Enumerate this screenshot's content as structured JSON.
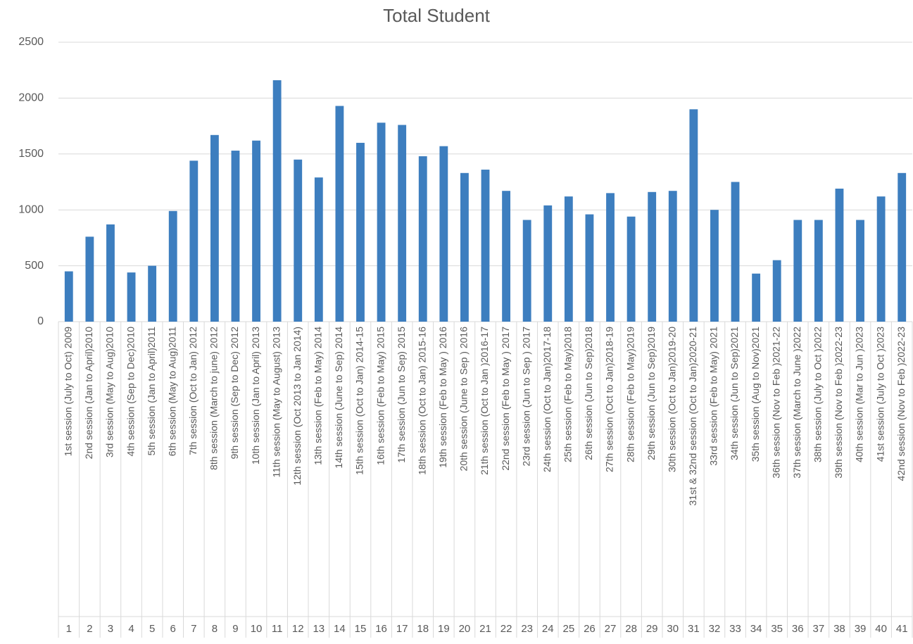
{
  "chart_data": {
    "type": "bar",
    "title": "Total Student",
    "categories": [
      "1st session (July to Oct) 2009",
      "2nd session (Jan to April)2010",
      "3rd session  (May to Aug)2010",
      "4th session (Sep to Dec)2010",
      "5th session (Jan to April)2011",
      "6th session (May to Aug)2011",
      "7th session (Oct to Jan) 2012",
      "8th session (March to june) 2012",
      "9th session (Sep to Dec) 2012",
      "10th session (Jan to April) 2013",
      "11th session (May to August) 2013",
      "12th session (Oct 2013 to Jan 2014)",
      "13th session (Feb to May) 2014",
      "14th session (June to Sep) 2014",
      "15th session (Oct to Jan) 2014-15",
      "16th session (Feb to May) 2015",
      "17th session  (Jun to Sep) 2015",
      "18th session (Oct to Jan) 2015-16",
      "19th session (Feb to May ) 2016",
      "20th session (June to Sep ) 2016",
      "21th session (Oct to Jan )2016-17",
      "22nd session (Feb to May ) 2017",
      "23rd session  (Jun to Sep ) 2017",
      "24th session (Oct to Jan)2017-18",
      "25th session (Feb to May)2018",
      "26th session (Jun to Sep)2018",
      "27th session (Oct to Jan)2018-19",
      "28th session (Feb to May)2019",
      "29th session (Jun to Sep)2019",
      "30th session (Oct to Jan)2019-20",
      "31st & 32nd session (Oct to Jan)2020-21",
      "33rd session (Feb to May) 2021",
      "34th session (Jun to Sep)2021",
      "35th session (Aug to Nov)2021",
      "36th session (Nov to Feb )2021-22",
      "37th session (March to June )2022",
      "38th session (July to Oct )2022",
      "39th session (Nov to Feb )2022-23",
      "40th session (Mar to Jun )2023",
      "41st session  (July to Oct )2023",
      "42nd session (Nov to Feb )2022-23"
    ],
    "category_numbers": [
      1,
      2,
      3,
      4,
      5,
      6,
      7,
      8,
      9,
      10,
      11,
      12,
      13,
      14,
      15,
      16,
      17,
      18,
      19,
      20,
      21,
      22,
      23,
      24,
      25,
      26,
      27,
      28,
      29,
      30,
      31,
      32,
      33,
      34,
      35,
      36,
      37,
      38,
      39,
      40,
      41
    ],
    "values": [
      450,
      760,
      870,
      440,
      500,
      990,
      1440,
      1670,
      1530,
      1620,
      2160,
      1450,
      1290,
      1930,
      1600,
      1780,
      1760,
      1480,
      1570,
      1330,
      1360,
      1170,
      910,
      1040,
      1120,
      960,
      1150,
      940,
      1160,
      1170,
      1900,
      1000,
      1250,
      430,
      550,
      910,
      910,
      1190,
      910,
      1120,
      1330
    ],
    "color": "#3d7ebf",
    "ylim": [
      0,
      2500
    ],
    "yticks": [
      0,
      500,
      1000,
      1500,
      2000,
      2500
    ],
    "grid": true
  }
}
